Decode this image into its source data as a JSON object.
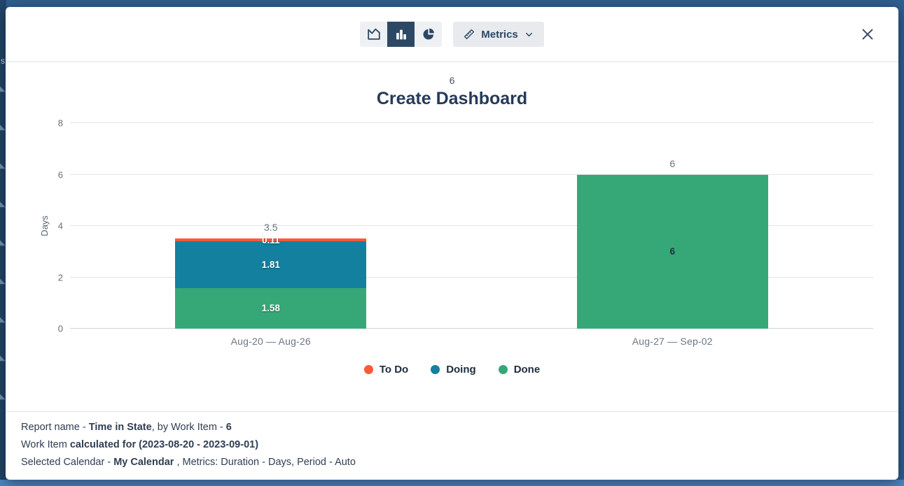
{
  "background": {
    "partial_text": "s",
    "edge_glyph": "◣"
  },
  "toolbar": {
    "chart_type_buttons": [
      {
        "name": "area-chart",
        "selected": false
      },
      {
        "name": "bar-chart",
        "selected": true
      },
      {
        "name": "pie-chart",
        "selected": false
      }
    ],
    "metrics_button_label": "Metrics"
  },
  "chart_data": {
    "type": "bar",
    "stacked": true,
    "subtitle": "6",
    "title": "Create Dashboard",
    "ylabel": "Days",
    "ylim": [
      0,
      8
    ],
    "yticks": [
      0,
      2,
      4,
      6,
      8
    ],
    "grid": true,
    "legend_position": "bottom",
    "categories": [
      "Aug-20 — Aug-26",
      "Aug-27 — Sep-02"
    ],
    "series": [
      {
        "name": "To Do",
        "color": "#fc5a39",
        "values": [
          0.11,
          0
        ]
      },
      {
        "name": "Doing",
        "color": "#14809f",
        "values": [
          1.81,
          0
        ]
      },
      {
        "name": "Done",
        "color": "#36a877",
        "values": [
          1.58,
          6
        ]
      }
    ],
    "bar_totals": [
      "3.5",
      "6"
    ],
    "bar_value_label_colors": [
      "#ffffff",
      "#20303c"
    ]
  },
  "footer": {
    "lines": [
      {
        "segments": [
          {
            "text": "Report name - ",
            "bold": false
          },
          {
            "text": "Time in State",
            "bold": true
          },
          {
            "text": ", by Work Item - ",
            "bold": false
          },
          {
            "text": "6",
            "bold": true
          }
        ]
      },
      {
        "segments": [
          {
            "text": "Work Item ",
            "bold": false
          },
          {
            "text": "calculated for (2023-08-20 - 2023-09-01)",
            "bold": true
          }
        ]
      },
      {
        "segments": [
          {
            "text": "Selected Calendar - ",
            "bold": false
          },
          {
            "text": "My Calendar",
            "bold": true
          },
          {
            "text": " , Metrics: Duration - Days, Period - Auto",
            "bold": false
          }
        ]
      }
    ]
  }
}
